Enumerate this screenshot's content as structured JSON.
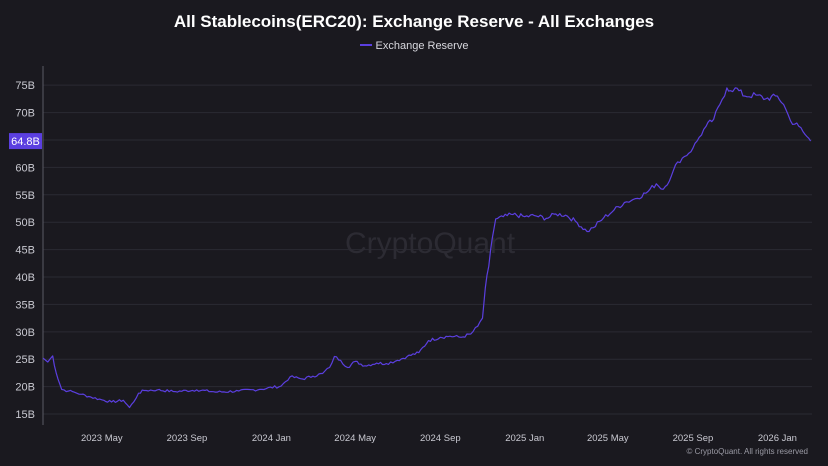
{
  "chart_data": {
    "type": "line",
    "title": "All Stablecoins(ERC20): Exchange Reserve - All Exchanges",
    "watermark": "CryptoQuant",
    "copyright": "© CryptoQuant. All rights reserved",
    "legend_position": "top-center",
    "grid": true,
    "ylim": [
      13,
      78.5
    ],
    "xlim": [
      "2023-02-05",
      "2026-02-20"
    ],
    "y_ticks": [
      "15B",
      "20B",
      "25B",
      "30B",
      "35B",
      "40B",
      "45B",
      "50B",
      "55B",
      "60B",
      "65B",
      "70B",
      "75B"
    ],
    "x_ticks": [
      "2023 May",
      "2023 Sep",
      "2024 Jan",
      "2024 May",
      "2024 Sep",
      "2025 Jan",
      "2025 May",
      "2025 Sep",
      "2026 Jan"
    ],
    "current_value_label": "64.8B",
    "current_value": 64.8,
    "colors": {
      "series": "#5b3fe0",
      "label_bg": "#5b3fe0",
      "grid": "#2b2a33",
      "axis_text": "#c9c9d1"
    },
    "series": [
      {
        "name": "Exchange Reserve",
        "x": [
          "2023-02-05",
          "2023-02-12",
          "2023-02-19",
          "2023-02-24",
          "2023-03-04",
          "2023-03-14",
          "2023-03-22",
          "2023-04-01",
          "2023-04-15",
          "2023-05-01",
          "2023-05-15",
          "2023-06-01",
          "2023-06-10",
          "2023-06-16",
          "2023-06-23",
          "2023-07-01",
          "2023-07-20",
          "2023-08-15",
          "2023-09-15",
          "2023-10-15",
          "2023-11-15",
          "2023-12-15",
          "2024-01-15",
          "2024-01-28",
          "2024-02-15",
          "2024-03-01",
          "2024-03-15",
          "2024-03-25",
          "2024-04-01",
          "2024-04-10",
          "2024-04-20",
          "2024-05-01",
          "2024-05-15",
          "2024-06-01",
          "2024-06-15",
          "2024-07-01",
          "2024-07-15",
          "2024-08-01",
          "2024-08-15",
          "2024-09-01",
          "2024-09-15",
          "2024-10-01",
          "2024-10-15",
          "2024-10-25",
          "2024-11-01",
          "2024-11-05",
          "2024-11-10",
          "2024-11-15",
          "2024-11-20",
          "2024-12-01",
          "2024-12-15",
          "2025-01-01",
          "2025-01-15",
          "2025-02-01",
          "2025-02-15",
          "2025-03-01",
          "2025-03-15",
          "2025-04-01",
          "2025-04-10",
          "2025-04-25",
          "2025-05-10",
          "2025-05-25",
          "2025-06-10",
          "2025-06-25",
          "2025-07-10",
          "2025-07-20",
          "2025-08-01",
          "2025-08-10",
          "2025-08-20",
          "2025-09-01",
          "2025-09-10",
          "2025-09-20",
          "2025-10-01",
          "2025-10-10",
          "2025-10-20",
          "2025-10-25",
          "2025-11-01",
          "2025-11-15",
          "2025-12-01",
          "2025-12-15",
          "2026-01-01",
          "2026-01-10",
          "2026-01-20",
          "2026-02-01",
          "2026-02-10",
          "2026-02-18"
        ],
        "y": [
          25.2,
          24.5,
          25.6,
          22.5,
          19.5,
          19.2,
          19.0,
          18.6,
          18.1,
          17.6,
          17.2,
          17.5,
          16.2,
          17.2,
          18.8,
          19.3,
          19.4,
          19.1,
          19.4,
          19.0,
          19.2,
          19.5,
          20.1,
          21.8,
          21.4,
          21.9,
          22.4,
          23.5,
          25.5,
          24.8,
          23.5,
          24.6,
          23.8,
          24.3,
          24.2,
          24.8,
          25.5,
          26.2,
          28.4,
          29.0,
          29.2,
          29.0,
          29.6,
          31.0,
          32.5,
          38.0,
          42.0,
          47.0,
          50.6,
          51.0,
          51.4,
          51.0,
          51.2,
          50.7,
          51.5,
          51.3,
          50.2,
          48.3,
          49.0,
          50.8,
          52.2,
          53.6,
          54.3,
          55.3,
          57.0,
          56.0,
          58.5,
          61.0,
          62.0,
          63.5,
          65.5,
          67.5,
          68.8,
          71.5,
          74.5,
          74.0,
          74.5,
          73.0,
          73.2,
          72.5,
          73.0,
          71.5,
          68.5,
          67.5,
          66.0,
          64.8
        ]
      }
    ]
  }
}
